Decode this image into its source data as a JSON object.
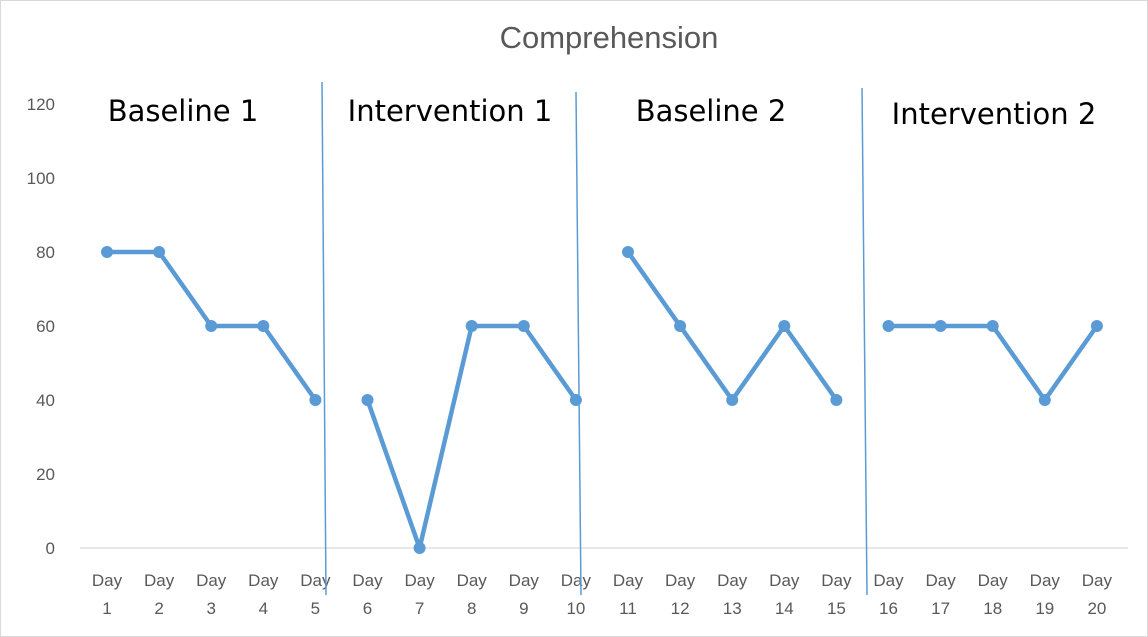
{
  "chart_data": {
    "type": "line",
    "title": "Comprehension",
    "xlabel": "",
    "ylabel": "",
    "ylim": [
      0,
      120
    ],
    "yticks": [
      0,
      20,
      40,
      60,
      80,
      100,
      120
    ],
    "grid": false,
    "legend": "none",
    "categories": [
      [
        "Day",
        "1"
      ],
      [
        "Day",
        "2"
      ],
      [
        "Day",
        "3"
      ],
      [
        "Day",
        "4"
      ],
      [
        "Day",
        "5"
      ],
      [
        "Day",
        "6"
      ],
      [
        "Day",
        "7"
      ],
      [
        "Day",
        "8"
      ],
      [
        "Day",
        "9"
      ],
      [
        "Day",
        "10"
      ],
      [
        "Day",
        "11"
      ],
      [
        "Day",
        "12"
      ],
      [
        "Day",
        "13"
      ],
      [
        "Day",
        "14"
      ],
      [
        "Day",
        "15"
      ],
      [
        "Day",
        "16"
      ],
      [
        "Day",
        "17"
      ],
      [
        "Day",
        "18"
      ],
      [
        "Day",
        "19"
      ],
      [
        "Day",
        "20"
      ]
    ],
    "phases": [
      {
        "label": "Baseline 1",
        "start_index": 0,
        "end_index": 4,
        "values": [
          80,
          80,
          60,
          60,
          40
        ]
      },
      {
        "label": "Intervention 1",
        "start_index": 5,
        "end_index": 9,
        "values": [
          40,
          0,
          60,
          60,
          40
        ]
      },
      {
        "label": "Baseline 2",
        "start_index": 10,
        "end_index": 14,
        "values": [
          80,
          60,
          40,
          60,
          40
        ]
      },
      {
        "label": "Intervention 2",
        "start_index": 15,
        "end_index": 19,
        "values": [
          60,
          60,
          60,
          40,
          60
        ]
      }
    ],
    "colors": {
      "series": "#5b9bd5",
      "phase_line": "#5b9bd5",
      "axis": "#d9d9d9",
      "tick_text": "#595959",
      "phase_text": "#000000"
    }
  }
}
